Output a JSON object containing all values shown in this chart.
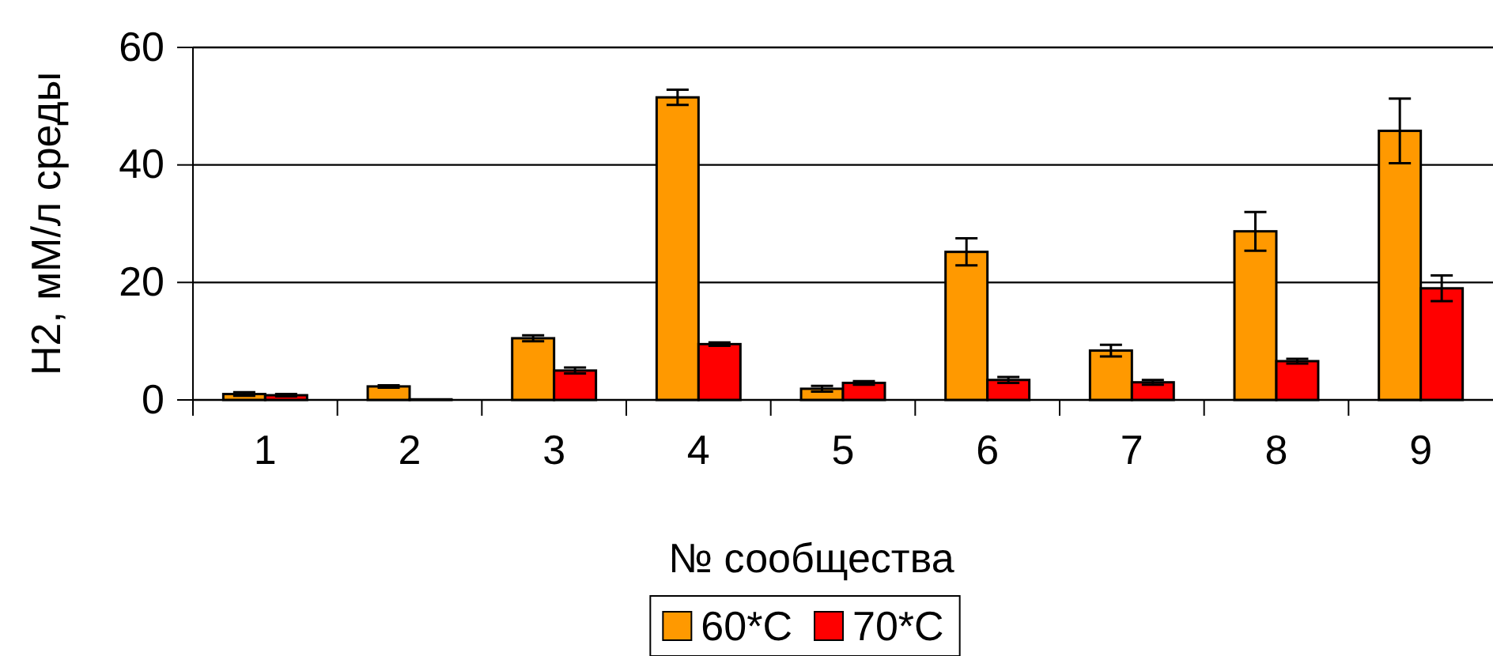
{
  "chart_data": {
    "type": "bar",
    "xlabel": "№ сообщества",
    "ylabel": "H2, мМ/л среды",
    "categories": [
      "1",
      "2",
      "3",
      "4",
      "5",
      "6",
      "7",
      "8",
      "9"
    ],
    "series": [
      {
        "name": "60*C",
        "color": "#ff9900",
        "values": [
          1,
          2.3,
          10.5,
          51.5,
          1.9,
          25.2,
          8.4,
          28.7,
          45.8
        ],
        "errors": [
          0.3,
          0.2,
          0.5,
          1.3,
          0.5,
          2.3,
          1.0,
          3.3,
          5.5
        ]
      },
      {
        "name": "70*C",
        "color": "#ff0000",
        "values": [
          0.8,
          0.1,
          5,
          9.5,
          2.9,
          3.4,
          3.0,
          6.6,
          19.0
        ],
        "errors": [
          0.2,
          null,
          0.5,
          0.3,
          0.3,
          0.5,
          0.4,
          0.4,
          2.2
        ]
      }
    ],
    "ylim": [
      0,
      60
    ],
    "yticks": [
      0,
      20,
      40,
      60
    ],
    "grid": "y",
    "legend": "bottom"
  }
}
